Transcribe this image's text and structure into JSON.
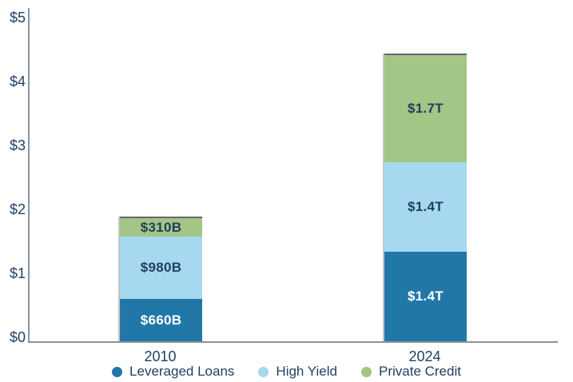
{
  "chart_data": {
    "type": "bar",
    "subtype": "stacked",
    "title": "",
    "categories": [
      "2010",
      "2024"
    ],
    "series": [
      {
        "name": "Leveraged Loans",
        "color": "#2178a8",
        "label_text_color": "#ffffff",
        "values_trillions": [
          0.66,
          1.4
        ],
        "value_labels": [
          "$660B",
          "$1.4T"
        ]
      },
      {
        "name": "High Yield",
        "color": "#a6d8f0",
        "label_text_color": "#1f3f5f",
        "values_trillions": [
          0.98,
          1.4
        ],
        "value_labels": [
          "$980B",
          "$1.4T"
        ]
      },
      {
        "name": "Private Credit",
        "color": "#a3c585",
        "label_text_color": "#1f3f5f",
        "values_trillions": [
          0.31,
          1.7
        ],
        "value_labels": [
          "$310B",
          "$1.7T"
        ]
      }
    ],
    "y_axis": {
      "ticks": [
        "$0",
        "$1",
        "$2",
        "$3",
        "$4",
        "$5"
      ],
      "tick_values": [
        0,
        1,
        2,
        3,
        4,
        5
      ],
      "range": [
        0,
        5
      ]
    },
    "grid": false,
    "legend_position": "bottom"
  },
  "colors": {
    "background": "#ffffff",
    "axis_line": "#8b949a",
    "text": "#1f3f5f",
    "bar_top_border": "#5f686e",
    "bar_left_border": "#c2c5c7"
  }
}
